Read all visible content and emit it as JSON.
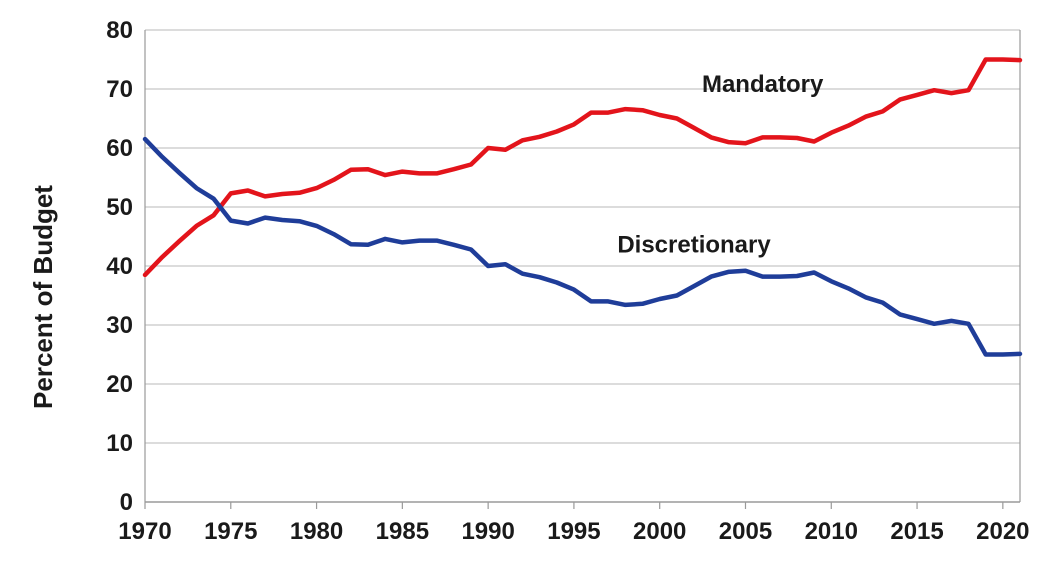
{
  "chart_data": {
    "type": "line",
    "title": "",
    "xlabel": "",
    "ylabel": "Percent of Budget",
    "xlim": [
      1970,
      2021
    ],
    "ylim": [
      0,
      80
    ],
    "xticks": [
      1970,
      1975,
      1980,
      1985,
      1990,
      1995,
      2000,
      2005,
      2010,
      2015,
      2020
    ],
    "yticks": [
      0,
      10,
      20,
      30,
      40,
      50,
      60,
      70,
      80
    ],
    "grid": "horizontal",
    "legend": "none",
    "x": [
      1970,
      1971,
      1972,
      1973,
      1974,
      1975,
      1976,
      1977,
      1978,
      1979,
      1980,
      1981,
      1982,
      1983,
      1984,
      1985,
      1986,
      1987,
      1988,
      1989,
      1990,
      1991,
      1992,
      1993,
      1994,
      1995,
      1996,
      1997,
      1998,
      1999,
      2000,
      2001,
      2002,
      2003,
      2004,
      2005,
      2006,
      2007,
      2008,
      2009,
      2010,
      2011,
      2012,
      2013,
      2014,
      2015,
      2016,
      2017,
      2018,
      2019,
      2020,
      2021
    ],
    "series": [
      {
        "name": "Mandatory",
        "color": "#e3141b",
        "values": [
          38.5,
          41.5,
          44.2,
          46.8,
          48.6,
          52.3,
          52.8,
          51.8,
          52.2,
          52.4,
          53.2,
          54.6,
          56.3,
          56.4,
          55.4,
          56.0,
          55.7,
          55.7,
          56.4,
          57.2,
          60.0,
          59.7,
          61.3,
          61.9,
          62.8,
          64.0,
          66.0,
          66.0,
          66.6,
          66.4,
          65.6,
          65.0,
          63.4,
          61.8,
          61.0,
          60.8,
          61.8,
          61.8,
          61.7,
          61.1,
          62.6,
          63.8,
          65.3,
          66.2,
          68.2,
          69.0,
          69.8,
          69.3,
          69.8,
          75.0,
          75.0,
          74.9
        ]
      },
      {
        "name": "Discretionary",
        "color": "#1f3d99",
        "values": [
          61.5,
          58.5,
          55.8,
          53.2,
          51.4,
          47.7,
          47.2,
          48.2,
          47.8,
          47.6,
          46.8,
          45.4,
          43.7,
          43.6,
          44.6,
          44.0,
          44.3,
          44.3,
          43.6,
          42.8,
          40.0,
          40.3,
          38.7,
          38.1,
          37.2,
          36.0,
          34.0,
          34.0,
          33.4,
          33.6,
          34.4,
          35.0,
          36.6,
          38.2,
          39.0,
          39.2,
          38.2,
          38.2,
          38.3,
          38.9,
          37.4,
          36.2,
          34.7,
          33.8,
          31.8,
          31.0,
          30.2,
          30.7,
          30.2,
          25.0,
          25.0,
          25.1
        ]
      }
    ],
    "annotations": [
      {
        "text": "Mandatory",
        "series": "Mandatory"
      },
      {
        "text": "Discretionary",
        "series": "Discretionary"
      }
    ]
  }
}
